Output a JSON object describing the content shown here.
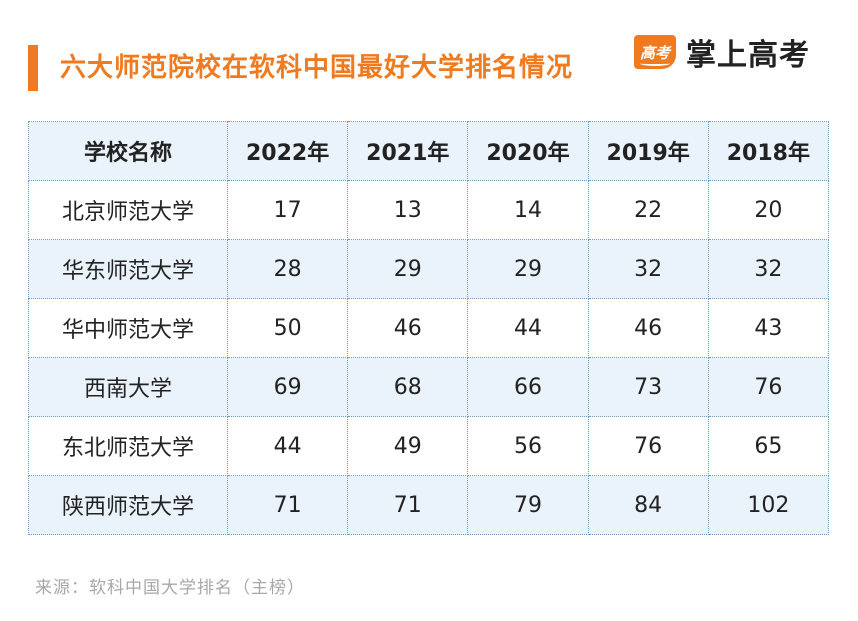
{
  "header": {
    "title": "六大师范院校在软科中国最好大学排名情况",
    "logo_mark_text": "高考",
    "logo_text": "掌上高考",
    "accent_color": "#f07a1f"
  },
  "table": {
    "columns": [
      "学校名称",
      "2022年",
      "2021年",
      "2020年",
      "2019年",
      "2018年"
    ],
    "rows": [
      [
        "北京师范大学",
        "17",
        "13",
        "14",
        "22",
        "20"
      ],
      [
        "华东师范大学",
        "28",
        "29",
        "29",
        "32",
        "32"
      ],
      [
        "华中师范大学",
        "50",
        "46",
        "44",
        "46",
        "43"
      ],
      [
        "西南大学",
        "69",
        "68",
        "66",
        "73",
        "76"
      ],
      [
        "东北师范大学",
        "44",
        "49",
        "56",
        "76",
        "65"
      ],
      [
        "陕西师范大学",
        "71",
        "71",
        "79",
        "84",
        "102"
      ]
    ]
  },
  "footer": {
    "source": "来源：软科中国大学排名（主榜）"
  }
}
